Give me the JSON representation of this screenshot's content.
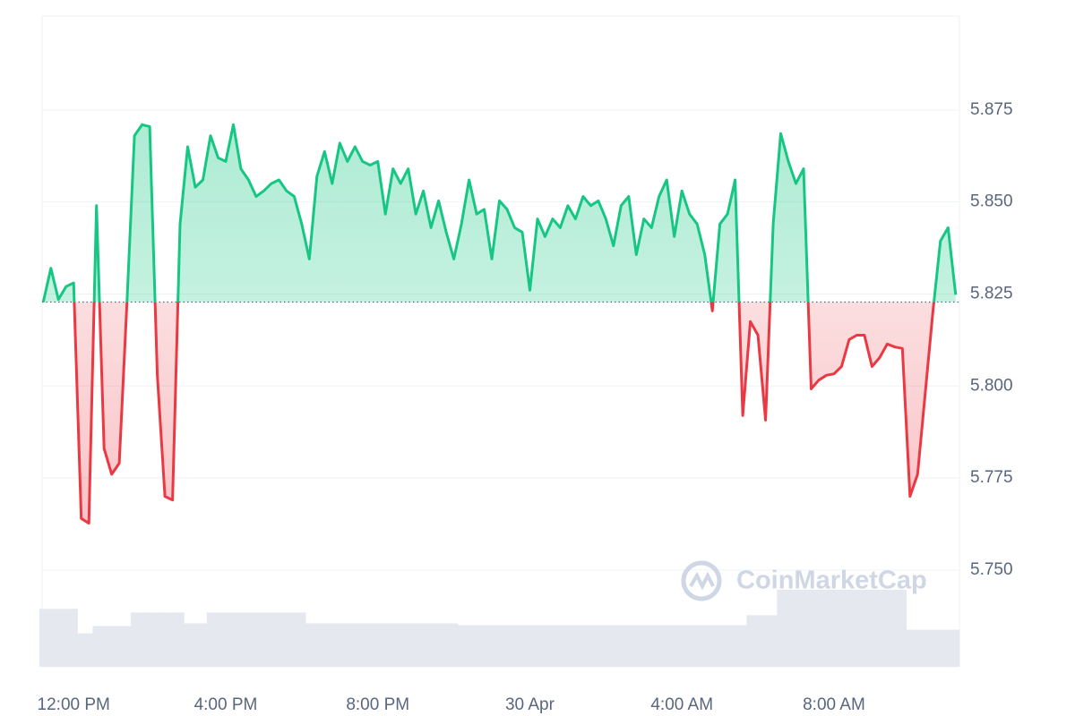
{
  "chart_data": {
    "type": "line",
    "watermark": "CoinMarketCap",
    "x": [
      11.2,
      11.4,
      11.6,
      11.8,
      12.0,
      12.2,
      12.4,
      12.6,
      12.8,
      13.0,
      13.2,
      13.4,
      13.6,
      13.8,
      14.0,
      14.2,
      14.4,
      14.6,
      14.8,
      15.0,
      15.2,
      15.4,
      15.6,
      15.8,
      16.0,
      16.2,
      16.4,
      16.6,
      16.8,
      17.0,
      17.2,
      17.4,
      17.6,
      17.8,
      18.0,
      18.2,
      18.4,
      18.6,
      18.8,
      19.0,
      19.2,
      19.4,
      19.6,
      19.8,
      20.0,
      20.2,
      20.4,
      20.6,
      20.8,
      21.0,
      21.2,
      21.4,
      21.6,
      21.8,
      22.0,
      22.2,
      22.4,
      22.6,
      22.8,
      23.0,
      23.2,
      23.4,
      23.6,
      23.8,
      24.0,
      24.2,
      24.4,
      24.6,
      24.8,
      25.0,
      25.2,
      25.4,
      25.6,
      25.8,
      26.0,
      26.2,
      26.4,
      26.6,
      26.8,
      27.0,
      27.2,
      27.4,
      27.6,
      27.8,
      28.0,
      28.2,
      28.4,
      28.6,
      28.8,
      29.0,
      29.2,
      29.4,
      29.6,
      29.8,
      30.0,
      30.2,
      30.4,
      30.6,
      30.8,
      31.0,
      31.2,
      31.4,
      31.6,
      31.8,
      32.0,
      32.2,
      32.4,
      32.6,
      32.8,
      33.0,
      33.2,
      33.4,
      33.6,
      33.8,
      34.0,
      34.2,
      34.4,
      34.6,
      34.8,
      35.0,
      35.2
    ],
    "values": [
      5.8228,
      5.832,
      5.8235,
      5.827,
      5.828,
      5.764,
      5.7627,
      5.849,
      5.783,
      5.776,
      5.779,
      5.822,
      5.868,
      5.871,
      5.8705,
      5.803,
      5.77,
      5.769,
      5.844,
      5.865,
      5.854,
      5.856,
      5.868,
      5.862,
      5.861,
      5.871,
      5.859,
      5.856,
      5.8515,
      5.853,
      5.855,
      5.856,
      5.853,
      5.8515,
      5.844,
      5.8345,
      5.857,
      5.8637,
      5.855,
      5.866,
      5.861,
      5.865,
      5.861,
      5.86,
      5.861,
      5.8467,
      5.859,
      5.855,
      5.859,
      5.8467,
      5.853,
      5.843,
      5.8503,
      5.8418,
      5.8345,
      5.844,
      5.856,
      5.8467,
      5.848,
      5.8345,
      5.8503,
      5.848,
      5.843,
      5.8418,
      5.826,
      5.8454,
      5.8406,
      5.8454,
      5.843,
      5.849,
      5.8454,
      5.8515,
      5.849,
      5.8503,
      5.8454,
      5.8381,
      5.849,
      5.8515,
      5.8357,
      5.8454,
      5.843,
      5.8515,
      5.856,
      5.8406,
      5.853,
      5.8467,
      5.844,
      5.8357,
      5.8204,
      5.844,
      5.8467,
      5.856,
      5.792,
      5.8175,
      5.8138,
      5.7907,
      5.844,
      5.8686,
      5.861,
      5.855,
      5.859,
      5.7992,
      5.8016,
      5.8029,
      5.8033,
      5.8053,
      5.8126,
      5.8138,
      5.8138,
      5.8053,
      5.8077,
      5.8114,
      5.8106,
      5.8102,
      5.77,
      5.776,
      5.798,
      5.82,
      5.8394,
      5.843,
      5.8248
    ],
    "volume": [
      64,
      64,
      64,
      64,
      64,
      37,
      37,
      45,
      45,
      45,
      45,
      45,
      60,
      60,
      60,
      60,
      60,
      60,
      60,
      48,
      48,
      48,
      60,
      60,
      60,
      60,
      60,
      60,
      60,
      60,
      60,
      60,
      60,
      60,
      60,
      48,
      48,
      48,
      48,
      48,
      48,
      48,
      48,
      48,
      48,
      48,
      48,
      48,
      48,
      48,
      48,
      48,
      48,
      48,
      48,
      46,
      46,
      46,
      46,
      46,
      46,
      46,
      46,
      46,
      46,
      46,
      46,
      46,
      46,
      46,
      46,
      46,
      46,
      46,
      46,
      46,
      46,
      46,
      46,
      46,
      46,
      46,
      46,
      46,
      46,
      46,
      46,
      46,
      46,
      46,
      46,
      46,
      46,
      57,
      57,
      57,
      57,
      85,
      85,
      85,
      85,
      85,
      85,
      85,
      85,
      85,
      85,
      85,
      85,
      85,
      85,
      85,
      85,
      85,
      41,
      41,
      41,
      41,
      41,
      41,
      41
    ],
    "baseline": 5.8228,
    "up_color": "#16c784",
    "down_color": "#ea3943",
    "volume_color": "#e5e8ee",
    "xlim": [
      11.17,
      35.3
    ],
    "ylim": [
      5.7237,
      5.9005
    ],
    "xticks": [
      {
        "value": 12,
        "label": "12:00 PM"
      },
      {
        "value": 16,
        "label": "4:00 PM"
      },
      {
        "value": 20,
        "label": "8:00 PM"
      },
      {
        "value": 24,
        "label": "30 Apr"
      },
      {
        "value": 28,
        "label": "4:00 AM"
      },
      {
        "value": 32,
        "label": "8:00 AM"
      }
    ],
    "yticks": [
      {
        "value": 5.75,
        "label": "5.750"
      },
      5.775,
      {
        "value": 5.8,
        "label": "5.800"
      },
      5.825,
      {
        "value": 5.85,
        "label": "5.850"
      },
      5.875
    ],
    "grid": true
  }
}
